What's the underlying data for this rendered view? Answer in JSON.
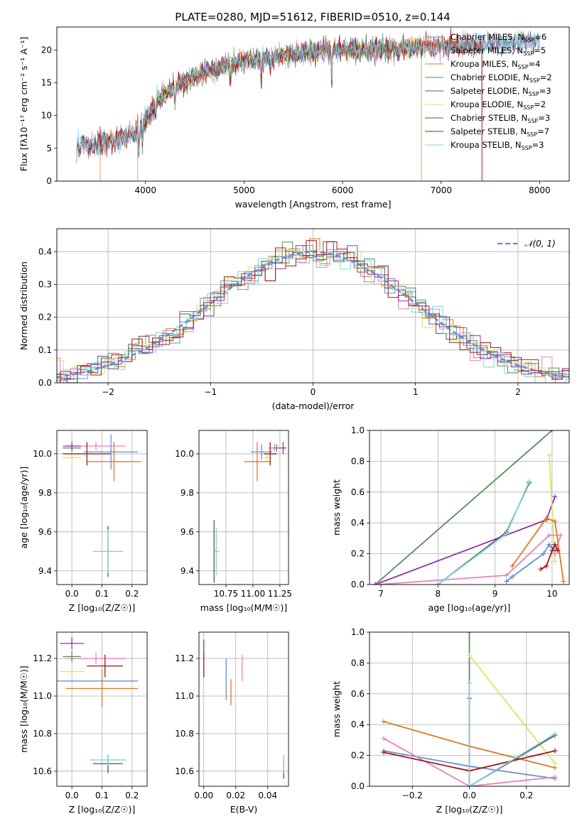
{
  "figure_title": "PLATE=0280, MJD=51612, FIBERID=0510, z=0.144",
  "colors": {
    "chabrier_miles": "#6a8fd0",
    "salpeter_miles": "#e683bf",
    "kroupa_miles": "#d97a25",
    "chabrier_elodie": "#5a8a5a",
    "salpeter_elodie": "#9130a8",
    "kroupa_elodie": "#d6e85f",
    "chabrier_stelib": "#555555",
    "salpeter_stelib": "#a01818",
    "kroupa_stelib": "#7fd3e0",
    "gaussian": "#5b8ad4"
  },
  "chart_data": [
    {
      "id": "spectrum",
      "type": "line",
      "xlabel": "wavelength [Angstrom, rest frame]",
      "ylabel": "Flux [fλ10⁻¹⁷ erg cm⁻² s⁻¹ A⁻¹]",
      "xlim": [
        3100,
        8300
      ],
      "ylim": [
        0,
        23.5
      ],
      "xticks": [
        "4000",
        "5000",
        "6000",
        "7000",
        "8000"
      ],
      "yticks": [
        "0",
        "5",
        "10",
        "15",
        "20"
      ],
      "grid": false,
      "legend_position": "top-right",
      "continuum": {
        "x": [
          3300,
          3500,
          3700,
          3900,
          4000,
          4100,
          4300,
          4500,
          4800,
          5000,
          5300,
          5600,
          5900,
          6200,
          6500,
          6800,
          7100,
          7400,
          7700,
          8000
        ],
        "y": [
          5.5,
          5.7,
          6.4,
          7.2,
          9.3,
          12.0,
          14.4,
          16.0,
          17.5,
          18.3,
          19.0,
          19.6,
          20.1,
          20.0,
          20.3,
          20.4,
          20.6,
          20.8,
          21.0,
          21.5
        ]
      },
      "absorption_lines": [
        {
          "x": 3934,
          "depth": 4.0
        },
        {
          "x": 3969,
          "depth": 3.0
        },
        {
          "x": 4102,
          "depth": 2.0
        },
        {
          "x": 4300,
          "depth": 3.5
        },
        {
          "x": 4861,
          "depth": 2.0
        },
        {
          "x": 5175,
          "depth": 4.0
        },
        {
          "x": 5270,
          "depth": 2.0
        },
        {
          "x": 5890,
          "depth": 5.5
        },
        {
          "x": 6563,
          "depth": 2.0
        }
      ],
      "series": [
        {
          "name": "Chabrier MILES, N<sub>SSP</sub>=6",
          "label_main": "Chabrier MILES, N",
          "label_sub": "SSP",
          "label_end": "=6",
          "color_key": "chabrier_miles",
          "start": 3300,
          "end": 8000
        },
        {
          "name": "Salpeter MILES, N<sub>SSP</sub>=5",
          "label_main": "Salpeter MILES, N",
          "label_sub": "SSP",
          "label_end": "=5",
          "color_key": "salpeter_miles",
          "start": 3300,
          "end": 8000
        },
        {
          "name": "Kroupa MILES, N<sub>SSP</sub>=4",
          "label_main": "Kroupa MILES, N",
          "label_sub": "SSP",
          "label_end": "=4",
          "color_key": "kroupa_miles",
          "start": 3540,
          "end": 7410
        },
        {
          "name": "Chabrier ELODIE, N<sub>SSP</sub>=2",
          "label_main": "Chabrier ELODIE, N",
          "label_sub": "SSP",
          "label_end": "=2",
          "color_key": "chabrier_elodie",
          "start": 3920,
          "end": 6800
        },
        {
          "name": "Salpeter ELODIE, N<sub>SSP</sub>=3",
          "label_main": "Salpeter ELODIE, N",
          "label_sub": "SSP",
          "label_end": "=3",
          "color_key": "salpeter_elodie",
          "start": 3920,
          "end": 6800
        },
        {
          "name": "Kroupa ELODIE, N<sub>SSP</sub>=2",
          "label_main": "Kroupa ELODIE, N",
          "label_sub": "SSP",
          "label_end": "=2",
          "color_key": "kroupa_elodie",
          "start": 3920,
          "end": 6800
        },
        {
          "name": "Chabrier STELIB, N<sub>SSP</sub>=3",
          "label_main": "Chabrier STELIB, N",
          "label_sub": "SSP",
          "label_end": "=3",
          "color_key": "chabrier_stelib",
          "start": 3300,
          "end": 8000
        },
        {
          "name": "Salpeter STELIB, N<sub>SSP</sub>=7",
          "label_main": "Salpeter STELIB, N",
          "label_sub": "SSP",
          "label_end": "=7",
          "color_key": "salpeter_stelib",
          "start": 3300,
          "end": 7420
        },
        {
          "name": "Kroupa STELIB, N<sub>SSP</sub>=3",
          "label_main": "Kroupa STELIB, N",
          "label_sub": "SSP",
          "label_end": "=3",
          "color_key": "kroupa_stelib",
          "start": 3300,
          "end": 8000
        }
      ]
    },
    {
      "id": "residuals",
      "type": "histogram",
      "xlabel": "(data-model)/error",
      "ylabel": "Normed distribution",
      "xlim": [
        -2.5,
        2.5
      ],
      "ylim": [
        0,
        0.47
      ],
      "xticks": [
        "−2",
        "−1",
        "0",
        "1",
        "2"
      ],
      "yticks": [
        "0.0",
        "0.1",
        "0.2",
        "0.3",
        "0.4"
      ],
      "grid": true,
      "bin_width": 0.1,
      "legend_label": "𝒩(0, 1)",
      "legend_position": "top-right",
      "curve": "gaussian(0,1)"
    },
    {
      "id": "age_vs_Z",
      "type": "errorbar",
      "xlabel": "Z [log₁₀(Z/Z☉)]",
      "ylabel": "age  [log₁₀(age/yr)]",
      "xlim": [
        -0.05,
        0.25
      ],
      "ylim": [
        9.33,
        10.12
      ],
      "xticks": [
        {
          "v": 0.0,
          "t": "0.0"
        },
        {
          "v": 0.1,
          "t": "0.1"
        },
        {
          "v": 0.2,
          "t": "0.2"
        }
      ],
      "yticks": [
        {
          "v": 9.4,
          "t": "9.4"
        },
        {
          "v": 9.6,
          "t": "9.6"
        },
        {
          "v": 9.8,
          "t": "9.8"
        },
        {
          "v": 10.0,
          "t": "10.0"
        }
      ],
      "grid": true,
      "points": [
        {
          "c": "chabrier_miles",
          "x": 0.13,
          "y": 10.01,
          "xe": 0.09,
          "ye": 0.09
        },
        {
          "c": "salpeter_miles",
          "x": 0.08,
          "y": 10.04,
          "xe": 0.1,
          "ye": 0.02
        },
        {
          "c": "kroupa_miles",
          "x": 0.14,
          "y": 9.96,
          "xe": 0.09,
          "ye": 0.1
        },
        {
          "c": "chabrier_elodie",
          "x": 0.0,
          "y": 10.03,
          "xe": 0.03,
          "ye": 0.02
        },
        {
          "c": "salpeter_elodie",
          "x": 0.0,
          "y": 10.04,
          "xe": 0.03,
          "ye": 0.02
        },
        {
          "c": "kroupa_elodie",
          "x": 0.0,
          "y": 9.98,
          "xe": 0.03,
          "ye": 0.02
        },
        {
          "c": "chabrier_stelib",
          "x": 0.12,
          "y": 9.5,
          "xe": 0.0,
          "ye": 0.13
        },
        {
          "c": "salpeter_stelib",
          "x": 0.05,
          "y": 10.0,
          "xe": 0.08,
          "ye": 0.06
        },
        {
          "c": "kroupa_stelib",
          "x": 0.12,
          "y": 9.5,
          "xe": 0.05,
          "ye": 0.11
        }
      ]
    },
    {
      "id": "age_vs_mass",
      "type": "errorbar",
      "xlabel": "mass [log₁₀(M/M☉)]",
      "ylabel": "",
      "xlim": [
        10.5,
        11.33
      ],
      "ylim": [
        9.33,
        10.12
      ],
      "xticks": [
        {
          "v": 10.75,
          "t": "10.75"
        },
        {
          "v": 11.0,
          "t": "11.00"
        },
        {
          "v": 11.25,
          "t": "11.25"
        }
      ],
      "yticks": [
        {
          "v": 9.4,
          "t": "9.4"
        },
        {
          "v": 9.6,
          "t": "9.6"
        },
        {
          "v": 9.8,
          "t": "9.8"
        },
        {
          "v": 10.0,
          "t": "10.0"
        }
      ],
      "grid": true,
      "points": [
        {
          "c": "chabrier_miles",
          "x": 11.08,
          "y": 10.01,
          "xe": 0.1,
          "ye": 0.04
        },
        {
          "c": "salpeter_miles",
          "x": 11.2,
          "y": 10.03,
          "xe": 0.06,
          "ye": 0.02
        },
        {
          "c": "kroupa_miles",
          "x": 11.04,
          "y": 9.96,
          "xe": 0.12,
          "ye": 0.1
        },
        {
          "c": "chabrier_elodie",
          "x": 11.22,
          "y": 10.03,
          "xe": 0.03,
          "ye": 0.02
        },
        {
          "c": "salpeter_elodie",
          "x": 11.28,
          "y": 10.03,
          "xe": 0.03,
          "ye": 0.03
        },
        {
          "c": "kroupa_elodie",
          "x": 11.13,
          "y": 9.98,
          "xe": 0.03,
          "ye": 0.02
        },
        {
          "c": "chabrier_stelib",
          "x": 10.64,
          "y": 9.5,
          "xe": 0.01,
          "ye": 0.16
        },
        {
          "c": "salpeter_stelib",
          "x": 11.16,
          "y": 10.0,
          "xe": 0.06,
          "ye": 0.06
        },
        {
          "c": "kroupa_stelib",
          "x": 10.66,
          "y": 9.5,
          "xe": 0.03,
          "ye": 0.12
        }
      ]
    },
    {
      "id": "mass_weight_vs_age",
      "type": "line",
      "xlabel": "age  [log₁₀(age/yr)]",
      "ylabel": "mass weight",
      "xlim": [
        6.8,
        10.3
      ],
      "ylim": [
        0,
        1.0
      ],
      "xticks": [
        {
          "v": 7,
          "t": "7"
        },
        {
          "v": 8,
          "t": "8"
        },
        {
          "v": 9,
          "t": "9"
        },
        {
          "v": 10,
          "t": "10"
        }
      ],
      "yticks": [
        {
          "v": 0,
          "t": "0.0"
        },
        {
          "v": 0.2,
          "t": "0.2"
        },
        {
          "v": 0.4,
          "t": "0.4"
        },
        {
          "v": 0.6,
          "t": "0.6"
        },
        {
          "v": 0.8,
          "t": "0.8"
        },
        {
          "v": 1.0,
          "t": "1.0"
        }
      ],
      "grid": true,
      "series": [
        {
          "c": "chabrier_elodie",
          "x": [
            6.9,
            10.0
          ],
          "y": [
            0.0,
            1.0
          ]
        },
        {
          "c": "salpeter_elodie",
          "x": [
            6.9,
            9.9,
            10.05
          ],
          "y": [
            0.0,
            0.42,
            0.57
          ]
        },
        {
          "c": "kroupa_elodie",
          "x": [
            9.95,
            10.05
          ],
          "y": [
            0.84,
            0.15
          ]
        },
        {
          "c": "chabrier_miles",
          "x": [
            9.2,
            9.3,
            9.85,
            9.95,
            10.0,
            10.05
          ],
          "y": [
            0.02,
            0.05,
            0.2,
            0.26,
            0.24,
            0.22
          ]
        },
        {
          "c": "salpeter_miles",
          "x": [
            6.95,
            9.2,
            9.95,
            10.15,
            10.05
          ],
          "y": [
            0.0,
            0.06,
            0.32,
            0.32,
            0.2
          ]
        },
        {
          "c": "kroupa_miles",
          "x": [
            9.3,
            9.9,
            10.05,
            10.2
          ],
          "y": [
            0.12,
            0.43,
            0.41,
            0.02
          ]
        },
        {
          "c": "chabrier_stelib",
          "x": [
            8.0,
            9.2,
            9.6
          ],
          "y": [
            0.0,
            0.34,
            0.66
          ]
        },
        {
          "c": "salpeter_stelib",
          "x": [
            9.8,
            9.9,
            10.0,
            10.05,
            10.1
          ],
          "y": [
            0.1,
            0.12,
            0.22,
            0.26,
            0.22
          ]
        },
        {
          "c": "kroupa_stelib",
          "x": [
            8.0,
            9.2,
            9.6
          ],
          "y": [
            0.0,
            0.33,
            0.67
          ]
        }
      ]
    },
    {
      "id": "mass_vs_Z",
      "type": "errorbar",
      "xlabel": "Z [log₁₀(Z/Z☉)]",
      "ylabel": "mass [log₁₀(M/M☉)]",
      "xlim": [
        -0.05,
        0.25
      ],
      "ylim": [
        10.52,
        11.34
      ],
      "xticks": [
        {
          "v": 0.0,
          "t": "0.0"
        },
        {
          "v": 0.1,
          "t": "0.1"
        },
        {
          "v": 0.2,
          "t": "0.2"
        }
      ],
      "yticks": [
        {
          "v": 10.6,
          "t": "10.6"
        },
        {
          "v": 10.8,
          "t": "10.8"
        },
        {
          "v": 11.0,
          "t": "11.0"
        },
        {
          "v": 11.2,
          "t": "11.2"
        }
      ],
      "grid": true,
      "points": [
        {
          "c": "chabrier_miles",
          "x": 0.07,
          "y": 11.08,
          "xe": 0.15,
          "ye": 0.0
        },
        {
          "c": "salpeter_miles",
          "x": 0.08,
          "y": 11.2,
          "xe": 0.1,
          "ye": 0.03
        },
        {
          "c": "kroupa_miles",
          "x": 0.1,
          "y": 11.04,
          "xe": 0.12,
          "ye": 0.1
        },
        {
          "c": "chabrier_elodie",
          "x": 0.0,
          "y": 11.21,
          "xe": 0.03,
          "ye": 0.03
        },
        {
          "c": "salpeter_elodie",
          "x": 0.0,
          "y": 11.28,
          "xe": 0.04,
          "ye": 0.03
        },
        {
          "c": "kroupa_elodie",
          "x": 0.0,
          "y": 11.13,
          "xe": 0.04,
          "ye": 0.02
        },
        {
          "c": "chabrier_stelib",
          "x": 0.12,
          "y": 10.64,
          "xe": 0.05,
          "ye": 0.05
        },
        {
          "c": "salpeter_stelib",
          "x": 0.11,
          "y": 11.16,
          "xe": 0.06,
          "ye": 0.06
        },
        {
          "c": "kroupa_stelib",
          "x": 0.12,
          "y": 10.66,
          "xe": 0.06,
          "ye": 0.03
        }
      ]
    },
    {
      "id": "mass_vs_ebv",
      "type": "errorbar",
      "xlabel": "E(B-V)",
      "ylabel": "",
      "xlim": [
        -0.003,
        0.053
      ],
      "ylim": [
        10.52,
        11.34
      ],
      "xticks": [
        {
          "v": 0.0,
          "t": "0.00"
        },
        {
          "v": 0.02,
          "t": "0.02"
        },
        {
          "v": 0.04,
          "t": "0.04"
        }
      ],
      "yticks": [
        {
          "v": 10.6,
          "t": "10.6"
        },
        {
          "v": 10.8,
          "t": "10.8"
        },
        {
          "v": 11.0,
          "t": "11.0"
        },
        {
          "v": 11.2,
          "t": "11.2"
        }
      ],
      "grid": true,
      "points": [
        {
          "c": "chabrier_miles",
          "x": 0.014,
          "y": 11.09,
          "xe": 0.0,
          "ye": 0.11
        },
        {
          "c": "salpeter_miles",
          "x": 0.024,
          "y": 11.15,
          "xe": 0.0,
          "ye": 0.07
        },
        {
          "c": "kroupa_miles",
          "x": 0.017,
          "y": 11.02,
          "xe": 0.0,
          "ye": 0.07
        },
        {
          "c": "chabrier_elodie",
          "x": 0.0,
          "y": 11.22,
          "xe": 0.0,
          "ye": 0.02
        },
        {
          "c": "salpeter_elodie",
          "x": 0.0,
          "y": 11.26,
          "xe": 0.0,
          "ye": 0.04
        },
        {
          "c": "kroupa_elodie",
          "x": 0.0,
          "y": 11.13,
          "xe": 0.0,
          "ye": 0.02
        },
        {
          "c": "chabrier_stelib",
          "x": 0.05,
          "y": 10.61,
          "xe": 0.0,
          "ye": 0.05
        },
        {
          "c": "salpeter_stelib",
          "x": 0.0,
          "y": 11.16,
          "xe": 0.0,
          "ye": 0.06
        },
        {
          "c": "kroupa_stelib",
          "x": 0.05,
          "y": 10.64,
          "xe": 0.0,
          "ye": 0.05
        }
      ]
    },
    {
      "id": "mass_weight_vs_Z",
      "type": "line",
      "xlabel": "Z [log₁₀(Z/Z☉)]",
      "ylabel": "mass weight",
      "xlim": [
        -0.35,
        0.35
      ],
      "ylim": [
        0,
        1.0
      ],
      "xticks": [
        {
          "v": -0.2,
          "t": "−0.2"
        },
        {
          "v": 0.0,
          "t": "0.0"
        },
        {
          "v": 0.2,
          "t": "0.2"
        }
      ],
      "yticks": [
        {
          "v": 0,
          "t": "0.0"
        },
        {
          "v": 0.2,
          "t": "0.2"
        },
        {
          "v": 0.4,
          "t": "0.4"
        },
        {
          "v": 0.6,
          "t": "0.6"
        },
        {
          "v": 0.8,
          "t": "0.8"
        },
        {
          "v": 1.0,
          "t": "1.0"
        }
      ],
      "grid": true,
      "series": [
        {
          "c": "chabrier_elodie",
          "x": [
            0.0,
            0.0
          ],
          "y": [
            0.0,
            1.0
          ]
        },
        {
          "c": "salpeter_elodie",
          "x": [
            0.0,
            0.0
          ],
          "y": [
            0.0,
            0.57
          ]
        },
        {
          "c": "kroupa_elodie",
          "x": [
            0.0,
            0.3
          ],
          "y": [
            0.85,
            0.15
          ]
        },
        {
          "c": "chabrier_miles",
          "x": [
            -0.3,
            0.0,
            0.3
          ],
          "y": [
            0.23,
            0.13,
            0.05
          ]
        },
        {
          "c": "salpeter_miles",
          "x": [
            -0.3,
            0.0,
            0.3
          ],
          "y": [
            0.31,
            0.0,
            0.06
          ]
        },
        {
          "c": "kroupa_miles",
          "x": [
            -0.3,
            0.0,
            0.3
          ],
          "y": [
            0.42,
            0.26,
            0.12
          ]
        },
        {
          "c": "chabrier_stelib",
          "x": [
            0.0,
            0.3
          ],
          "y": [
            0.0,
            0.33
          ]
        },
        {
          "c": "salpeter_stelib",
          "x": [
            -0.3,
            0.0,
            0.3
          ],
          "y": [
            0.22,
            0.1,
            0.23
          ]
        },
        {
          "c": "kroupa_stelib",
          "x": [
            0.0,
            0.0,
            0.3
          ],
          "y": [
            0.67,
            0.0,
            0.34
          ]
        }
      ]
    }
  ]
}
